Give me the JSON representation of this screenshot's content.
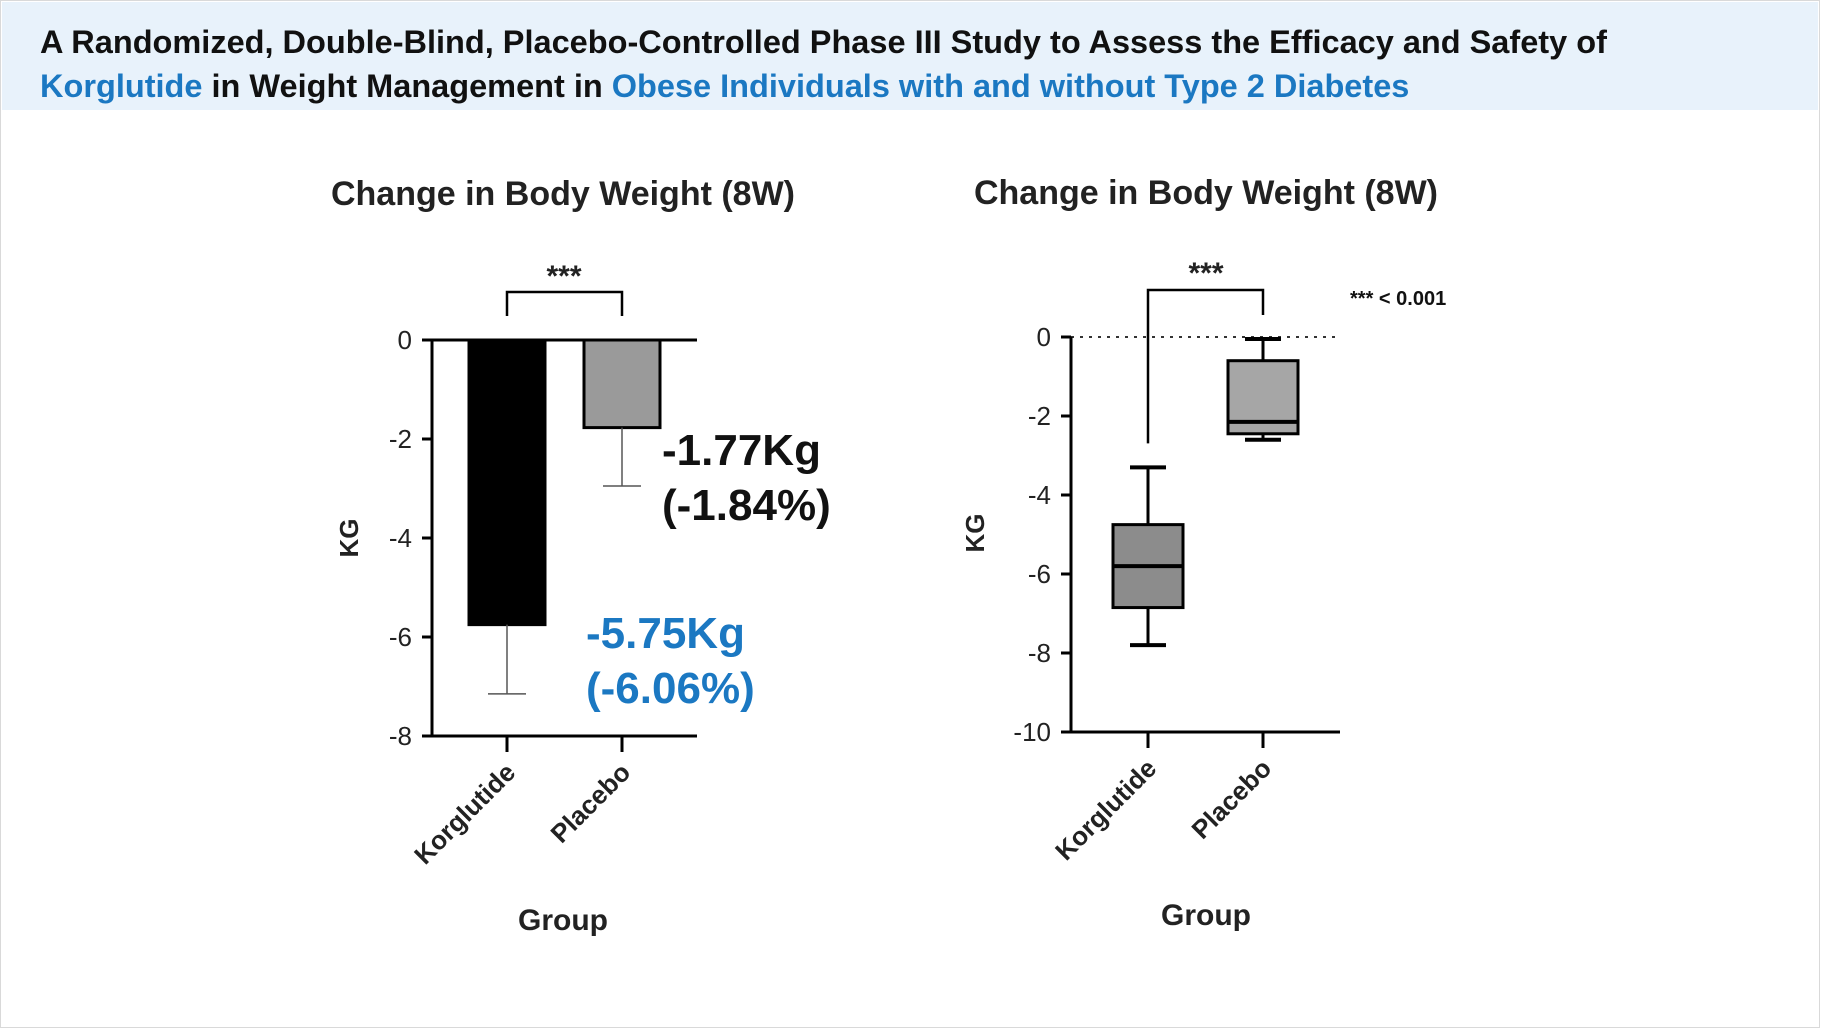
{
  "header": {
    "line1": "A Randomized, Double-Blind, Placebo-Controlled Phase III Study to Assess the Efficacy and Safety of",
    "line2_drug": "Korglutide",
    "line2_mid": " in Weight Management in ",
    "line2_population": "Obese Individuals with and without Type 2 Diabetes"
  },
  "colors": {
    "accent": "#1b78c2",
    "banner_bg": "#e8f2fb",
    "korglutide_bar": "#000000",
    "placebo_bar": "#9a9a9a",
    "korglutide_box": "#8c8c8c",
    "placebo_box": "#a6a6a6"
  },
  "chart_data": [
    {
      "type": "bar",
      "title": "Change in Body Weight (8W)",
      "xlabel": "Group",
      "ylabel": "KG",
      "categories": [
        "Korglutide",
        "Placebo"
      ],
      "values": [
        -5.75,
        -1.77
      ],
      "error_lower": [
        -7.15,
        -2.95
      ],
      "ylim": [
        -8,
        0
      ],
      "yticks": [
        "0",
        "-2",
        "-4",
        "-6",
        "-8"
      ],
      "significance": "***",
      "data_labels": [
        {
          "value": "-5.75Kg",
          "pct": "(-6.06%)",
          "color": "#1b78c2"
        },
        {
          "value": "-1.77Kg",
          "pct": "(-1.84%)",
          "color": "#111111"
        }
      ],
      "grid": false
    },
    {
      "type": "box",
      "title": "Change in Body Weight (8W)",
      "xlabel": "Group",
      "ylabel": "KG",
      "categories": [
        "Korglutide",
        "Placebo"
      ],
      "boxes": [
        {
          "min": -7.8,
          "q1": -6.85,
          "median": -5.8,
          "q3": -4.75,
          "max": -3.3
        },
        {
          "min": -2.6,
          "q1": -2.45,
          "median": -2.15,
          "q3": -0.6,
          "max": -0.05
        }
      ],
      "ylim": [
        -10,
        0
      ],
      "yticks": [
        "0",
        "-2",
        "-4",
        "-6",
        "-8",
        "-10"
      ],
      "reference_line": 0,
      "significance": "***",
      "significance_note": "*** < 0.001",
      "grid": false
    }
  ]
}
